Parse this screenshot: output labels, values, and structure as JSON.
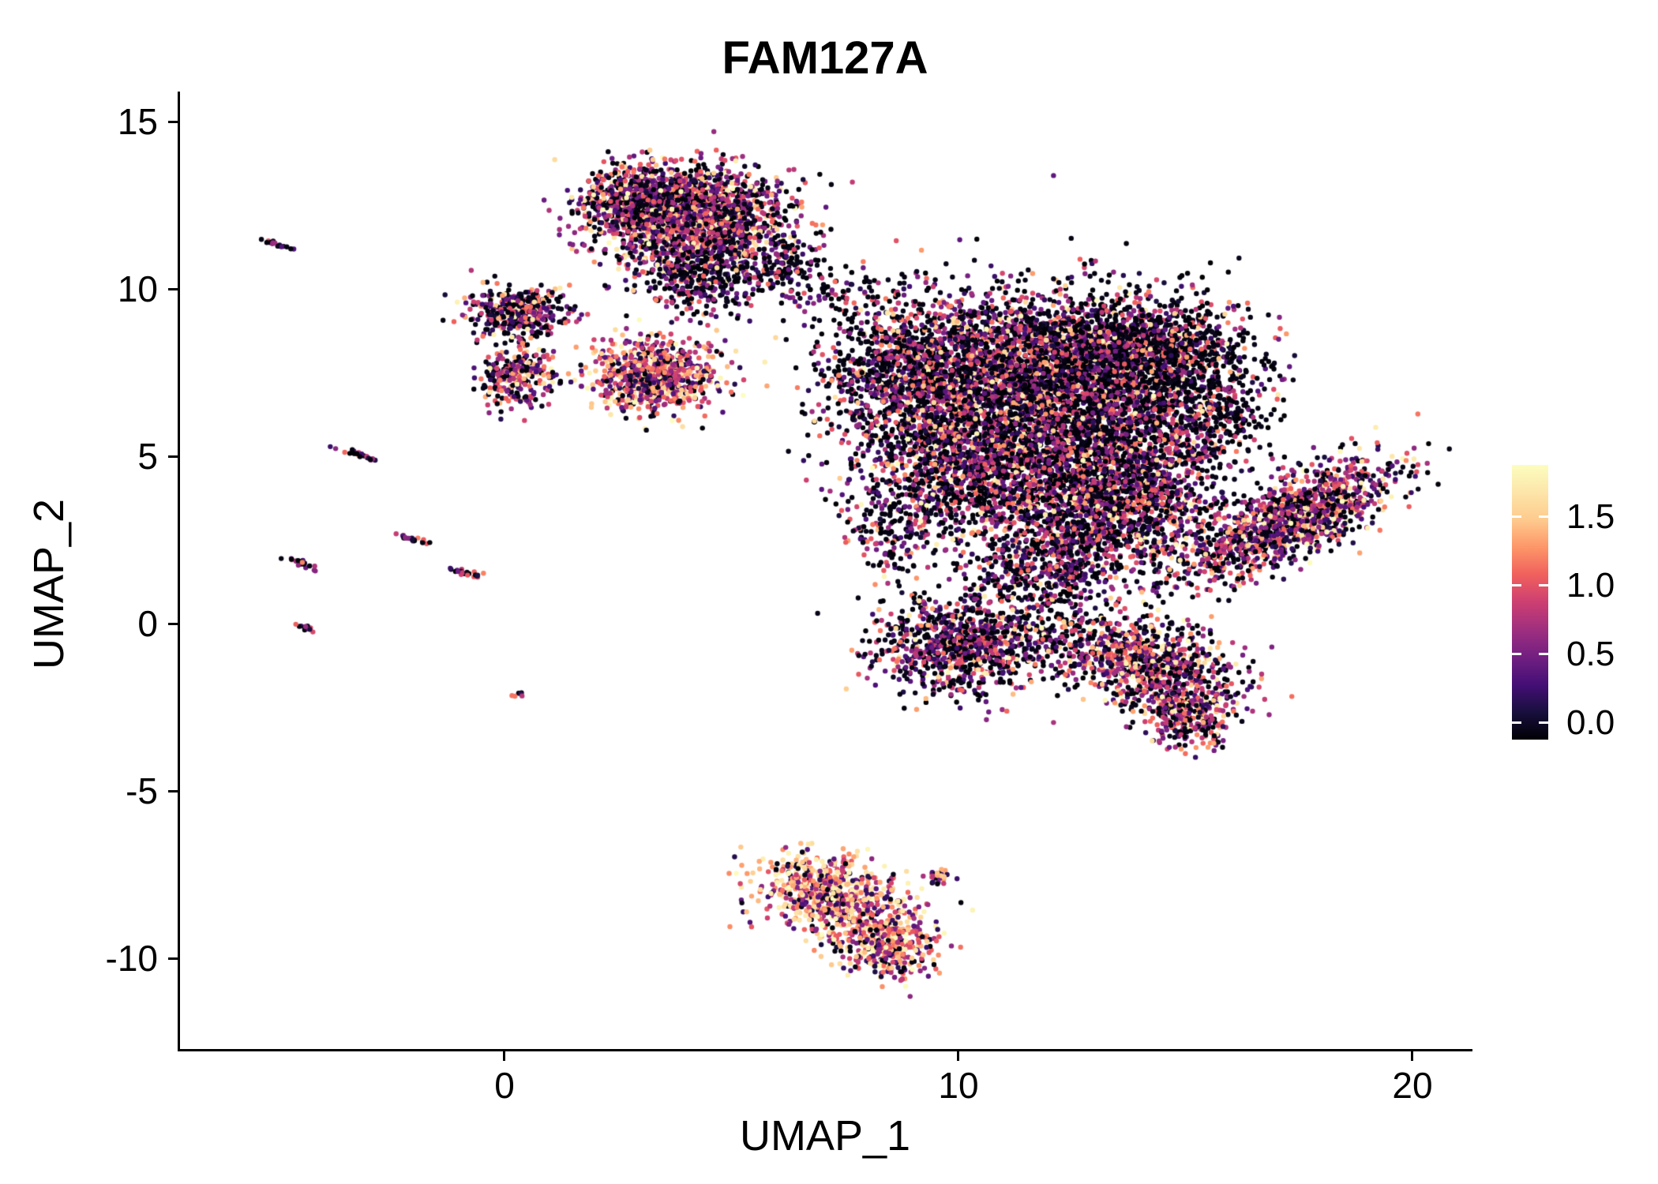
{
  "title": "FAM127A",
  "axes": {
    "x": {
      "label": "UMAP_1",
      "tick_labels": [
        "0",
        "10",
        "20"
      ]
    },
    "y": {
      "label": "UMAP_2",
      "tick_labels": [
        "15",
        "10",
        "5",
        "0",
        "-5",
        "-10"
      ]
    }
  },
  "legend": {
    "tick_labels": [
      "1.5",
      "1.0",
      "0.5",
      "0.0"
    ]
  },
  "chart_data": {
    "type": "scatter",
    "title": "FAM127A",
    "xlabel": "UMAP_1",
    "ylabel": "UMAP_2",
    "xlim": [
      -7.1,
      21.3
    ],
    "ylim": [
      -12.7,
      15.9
    ],
    "x_ticks": [
      0,
      10,
      20
    ],
    "y_ticks": [
      -10,
      -5,
      0,
      5,
      10,
      15
    ],
    "colorbar_ticks": [
      0.0,
      0.5,
      1.0,
      1.5
    ],
    "expr_max": 1.8,
    "point_radius": 3.2,
    "seed": 42,
    "colormap": [
      {
        "t": 0.0,
        "rgb": [
          0,
          0,
          4
        ]
      },
      {
        "t": 0.1,
        "rgb": [
          24,
          15,
          61
        ]
      },
      {
        "t": 0.2,
        "rgb": [
          68,
          15,
          118
        ]
      },
      {
        "t": 0.3,
        "rgb": [
          114,
          31,
          129
        ]
      },
      {
        "t": 0.4,
        "rgb": [
          159,
          47,
          127
        ]
      },
      {
        "t": 0.5,
        "rgb": [
          205,
          63,
          113
        ]
      },
      {
        "t": 0.6,
        "rgb": [
          240,
          96,
          93
        ]
      },
      {
        "t": 0.7,
        "rgb": [
          253,
          150,
          104
        ]
      },
      {
        "t": 0.8,
        "rgb": [
          254,
          202,
          141
        ]
      },
      {
        "t": 0.9,
        "rgb": [
          253,
          229,
          169
        ]
      },
      {
        "t": 1.0,
        "rgb": [
          252,
          253,
          191
        ]
      }
    ],
    "bands": [
      [
        0,
        0.08
      ],
      [
        0.15,
        0.6
      ],
      [
        0.6,
        1.2
      ],
      [
        1.2,
        1.8
      ]
    ],
    "clusters": [
      {
        "name": "streak-a",
        "cx": -5.05,
        "cy": 11.35,
        "sx": 0.18,
        "sy": 0.035,
        "rot": -25,
        "n": 20,
        "mix": [
          0.4,
          0.3,
          0.3,
          0.0
        ]
      },
      {
        "name": "top-main",
        "cx": 4.1,
        "cy": 12.1,
        "sx": 1.05,
        "sy": 0.75,
        "rot": 0,
        "n": 1800,
        "mix": [
          0.32,
          0.22,
          0.32,
          0.14
        ]
      },
      {
        "name": "top-left-lobe",
        "cx": 3.0,
        "cy": 12.7,
        "sx": 0.7,
        "sy": 0.45,
        "rot": 0,
        "n": 500,
        "mix": [
          0.35,
          0.25,
          0.3,
          0.1
        ]
      },
      {
        "name": "top-lower-tail",
        "cx": 4.3,
        "cy": 10.4,
        "sx": 0.7,
        "sy": 0.6,
        "rot": 0,
        "n": 350,
        "mix": [
          0.5,
          0.25,
          0.2,
          0.05
        ]
      },
      {
        "name": "top-right-sparse",
        "cx": 6.2,
        "cy": 10.6,
        "sx": 0.55,
        "sy": 0.45,
        "rot": 0,
        "n": 120,
        "mix": [
          0.6,
          0.2,
          0.2,
          0.0
        ]
      },
      {
        "name": "bridge-sparse",
        "cx": 7.2,
        "cy": 9.9,
        "sx": 0.7,
        "sy": 0.45,
        "rot": 0,
        "n": 70,
        "mix": [
          0.55,
          0.25,
          0.2,
          0.0
        ]
      },
      {
        "name": "nw-small",
        "cx": 0.3,
        "cy": 9.3,
        "sx": 0.55,
        "sy": 0.4,
        "rot": 0,
        "n": 380,
        "mix": [
          0.4,
          0.25,
          0.25,
          0.1
        ]
      },
      {
        "name": "nw-small-2",
        "cx": 0.25,
        "cy": 7.4,
        "sx": 0.4,
        "sy": 0.5,
        "rot": 0,
        "n": 260,
        "mix": [
          0.3,
          0.2,
          0.3,
          0.2
        ]
      },
      {
        "name": "mid-pink",
        "cx": 3.3,
        "cy": 7.4,
        "sx": 0.72,
        "sy": 0.55,
        "rot": 0,
        "n": 750,
        "mix": [
          0.15,
          0.2,
          0.35,
          0.3
        ]
      },
      {
        "name": "main-a",
        "cx": 9.2,
        "cy": 7.3,
        "sx": 1.1,
        "sy": 1.3,
        "rot": 0,
        "n": 1500,
        "mix": [
          0.52,
          0.2,
          0.22,
          0.06
        ]
      },
      {
        "name": "main-b",
        "cx": 11.6,
        "cy": 7.9,
        "sx": 1.3,
        "sy": 1.0,
        "rot": 0,
        "n": 1800,
        "mix": [
          0.44,
          0.2,
          0.26,
          0.1
        ]
      },
      {
        "name": "main-c",
        "cx": 13.2,
        "cy": 6.3,
        "sx": 1.3,
        "sy": 1.4,
        "rot": 0,
        "n": 2200,
        "mix": [
          0.5,
          0.2,
          0.22,
          0.08
        ]
      },
      {
        "name": "main-d",
        "cx": 10.8,
        "cy": 4.6,
        "sx": 1.4,
        "sy": 1.1,
        "rot": 0,
        "n": 1700,
        "mix": [
          0.46,
          0.2,
          0.26,
          0.08
        ]
      },
      {
        "name": "main-e",
        "cx": 13.6,
        "cy": 3.4,
        "sx": 1.1,
        "sy": 1.0,
        "rot": 0,
        "n": 1100,
        "mix": [
          0.44,
          0.2,
          0.26,
          0.1
        ]
      },
      {
        "name": "main-f",
        "cx": 12.0,
        "cy": 1.8,
        "sx": 0.9,
        "sy": 0.7,
        "rot": 0,
        "n": 500,
        "mix": [
          0.5,
          0.24,
          0.21,
          0.05
        ]
      },
      {
        "name": "main-g",
        "cx": 14.2,
        "cy": 8.3,
        "sx": 0.8,
        "sy": 0.7,
        "rot": 0,
        "n": 700,
        "mix": [
          0.58,
          0.16,
          0.2,
          0.06
        ]
      },
      {
        "name": "main-right-sparse",
        "cx": 15.6,
        "cy": 6.8,
        "sx": 0.7,
        "sy": 1.3,
        "rot": 0,
        "n": 450,
        "mix": [
          0.62,
          0.16,
          0.17,
          0.05
        ]
      },
      {
        "name": "main-sw-sparse",
        "cx": 8.6,
        "cy": 2.8,
        "sx": 0.6,
        "sy": 0.8,
        "rot": 0,
        "n": 150,
        "mix": [
          0.5,
          0.25,
          0.2,
          0.05
        ]
      },
      {
        "name": "right-wing",
        "cx": 17.3,
        "cy": 3.1,
        "sx": 1.35,
        "sy": 0.5,
        "rot": 36,
        "n": 1300,
        "mix": [
          0.3,
          0.22,
          0.33,
          0.15
        ]
      },
      {
        "name": "low-mid",
        "cx": 10.1,
        "cy": -0.6,
        "sx": 0.95,
        "sy": 0.75,
        "rot": 0,
        "n": 900,
        "mix": [
          0.42,
          0.24,
          0.27,
          0.07
        ]
      },
      {
        "name": "gap-sparse",
        "cx": 12.3,
        "cy": -0.4,
        "sx": 0.7,
        "sy": 0.5,
        "rot": 0,
        "n": 120,
        "mix": [
          0.5,
          0.25,
          0.2,
          0.05
        ]
      },
      {
        "name": "low-right",
        "cx": 14.3,
        "cy": -1.3,
        "sx": 1.0,
        "sy": 0.6,
        "rot": -25,
        "n": 900,
        "mix": [
          0.3,
          0.22,
          0.33,
          0.15
        ]
      },
      {
        "name": "low-right-tail",
        "cx": 15.1,
        "cy": -2.9,
        "sx": 0.5,
        "sy": 0.45,
        "rot": 0,
        "n": 250,
        "mix": [
          0.3,
          0.22,
          0.33,
          0.15
        ]
      },
      {
        "name": "bottom-a",
        "cx": 6.9,
        "cy": -7.9,
        "sx": 0.75,
        "sy": 0.55,
        "rot": -15,
        "n": 450,
        "mix": [
          0.08,
          0.15,
          0.32,
          0.45
        ]
      },
      {
        "name": "bottom-b",
        "cx": 7.9,
        "cy": -8.8,
        "sx": 0.75,
        "sy": 0.6,
        "rot": -20,
        "n": 400,
        "mix": [
          0.1,
          0.18,
          0.35,
          0.37
        ]
      },
      {
        "name": "bottom-c",
        "cx": 8.5,
        "cy": -9.8,
        "sx": 0.45,
        "sy": 0.45,
        "rot": 0,
        "n": 250,
        "mix": [
          0.1,
          0.18,
          0.35,
          0.37
        ]
      },
      {
        "name": "bottom-dot",
        "cx": 9.55,
        "cy": -7.55,
        "sx": 0.12,
        "sy": 0.12,
        "rot": 0,
        "n": 30,
        "mix": [
          0.15,
          0.2,
          0.3,
          0.35
        ]
      },
      {
        "name": "streak-b",
        "cx": -3.2,
        "cy": 5.05,
        "sx": 0.22,
        "sy": 0.04,
        "rot": -20,
        "n": 25,
        "mix": [
          0.3,
          0.3,
          0.4,
          0.0
        ]
      },
      {
        "name": "streak-c",
        "cx": -2.1,
        "cy": 2.55,
        "sx": 0.18,
        "sy": 0.04,
        "rot": -20,
        "n": 20,
        "mix": [
          0.3,
          0.3,
          0.4,
          0.0
        ]
      },
      {
        "name": "streak-d",
        "cx": -4.5,
        "cy": 1.8,
        "sx": 0.18,
        "sy": 0.04,
        "rot": -25,
        "n": 20,
        "mix": [
          0.3,
          0.3,
          0.4,
          0.0
        ]
      },
      {
        "name": "streak-e",
        "cx": -0.8,
        "cy": 1.5,
        "sx": 0.2,
        "sy": 0.04,
        "rot": -15,
        "n": 20,
        "mix": [
          0.4,
          0.3,
          0.3,
          0.0
        ]
      },
      {
        "name": "streak-f",
        "cx": -4.35,
        "cy": -0.15,
        "sx": 0.12,
        "sy": 0.035,
        "rot": -25,
        "n": 15,
        "mix": [
          0.4,
          0.3,
          0.3,
          0.0
        ]
      },
      {
        "name": "dot-g",
        "cx": 0.3,
        "cy": -2.1,
        "sx": 0.05,
        "sy": 0.04,
        "rot": 0,
        "n": 6,
        "mix": [
          0.3,
          0.3,
          0.4,
          0.0
        ]
      }
    ]
  }
}
